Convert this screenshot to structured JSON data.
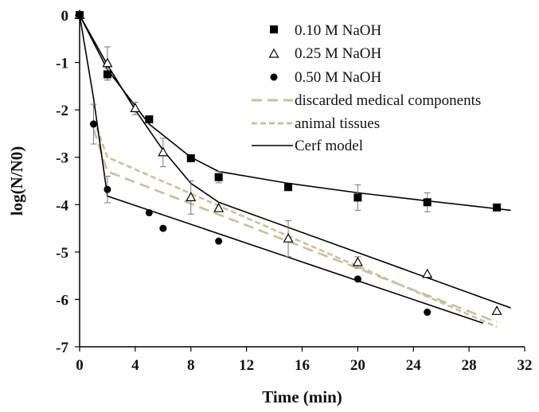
{
  "chart_data": {
    "type": "scatter",
    "title": "",
    "xlabel": "Time  (min)",
    "ylabel": "log(N/N0)",
    "xlim": [
      0,
      32
    ],
    "ylim": [
      -7,
      0
    ],
    "xticks": [
      "0",
      "4",
      "8",
      "12",
      "16",
      "20",
      "24",
      "28",
      "32"
    ],
    "yticks": [
      "0",
      "-1",
      "-2",
      "-3",
      "-4",
      "-5",
      "-6",
      "-7"
    ],
    "grid": false,
    "legend_position": "top-right",
    "colors": {
      "data": "#000000",
      "dashed": "#c8c09a"
    },
    "series": [
      {
        "name": "0.10 M NaOH",
        "marker": "square",
        "points": [
          {
            "x": 0,
            "y": 0,
            "err": 0
          },
          {
            "x": 2,
            "y": -1.25,
            "err": 0.12
          },
          {
            "x": 5,
            "y": -2.2,
            "err": 0
          },
          {
            "x": 8,
            "y": -3.02,
            "err": 0
          },
          {
            "x": 10,
            "y": -3.42,
            "err": 0.12
          },
          {
            "x": 15,
            "y": -3.63,
            "err": 0
          },
          {
            "x": 20,
            "y": -3.85,
            "err": 0.27
          },
          {
            "x": 25,
            "y": -3.95,
            "err": 0.2
          },
          {
            "x": 30,
            "y": -4.06,
            "err": 0
          }
        ]
      },
      {
        "name": "0.25 M NaOH",
        "marker": "triangle-open",
        "points": [
          {
            "x": 0,
            "y": 0,
            "err": 0
          },
          {
            "x": 2,
            "y": -1.02,
            "err": 0.35
          },
          {
            "x": 4,
            "y": -1.97,
            "err": 0.13
          },
          {
            "x": 6,
            "y": -2.9,
            "err": 0.3
          },
          {
            "x": 8,
            "y": -3.85,
            "err": 0.35
          },
          {
            "x": 10,
            "y": -4.08,
            "err": 0
          },
          {
            "x": 15,
            "y": -4.72,
            "err": 0.38
          },
          {
            "x": 20,
            "y": -5.22,
            "err": 0.12
          },
          {
            "x": 25,
            "y": -5.47,
            "err": 0
          },
          {
            "x": 30,
            "y": -6.25,
            "err": 0
          }
        ]
      },
      {
        "name": "0.50 M NaOH",
        "marker": "circle",
        "points": [
          {
            "x": 0,
            "y": 0,
            "err": 0
          },
          {
            "x": 1,
            "y": -2.3,
            "err": 0.42
          },
          {
            "x": 2,
            "y": -3.68,
            "err": 0.28
          },
          {
            "x": 5,
            "y": -4.17,
            "err": 0
          },
          {
            "x": 6,
            "y": -4.5,
            "err": 0
          },
          {
            "x": 10,
            "y": -4.77,
            "err": 0
          },
          {
            "x": 20,
            "y": -5.57,
            "err": 0
          },
          {
            "x": 25,
            "y": -6.27,
            "err": 0
          }
        ]
      }
    ],
    "lines": [
      {
        "name": "discarded medical components",
        "style": "dashed",
        "dash": "long",
        "points": [
          [
            1,
            -2.4
          ],
          [
            2,
            -3.3
          ],
          [
            30,
            -6.48
          ]
        ]
      },
      {
        "name": "animal tissues",
        "style": "dashed",
        "dash": "short",
        "points": [
          [
            1,
            -2.2
          ],
          [
            2,
            -3.0
          ],
          [
            30,
            -6.58
          ]
        ]
      },
      {
        "name": "Cerf model",
        "style": "solid",
        "curves": [
          [
            [
              0,
              0
            ],
            [
              1,
              -1.75
            ],
            [
              2,
              -3.82
            ],
            [
              29,
              -6.5
            ]
          ],
          [
            [
              0,
              0
            ],
            [
              2,
              -1.05
            ],
            [
              4,
              -2.0
            ],
            [
              6,
              -2.85
            ],
            [
              8,
              -3.55
            ],
            [
              10,
              -3.95
            ],
            [
              31,
              -6.18
            ]
          ],
          [
            [
              0,
              0
            ],
            [
              2,
              -1.15
            ],
            [
              5,
              -2.3
            ],
            [
              8,
              -3.0
            ],
            [
              10,
              -3.3
            ],
            [
              15,
              -3.55
            ],
            [
              20,
              -3.75
            ],
            [
              25,
              -3.92
            ],
            [
              31,
              -4.12
            ]
          ]
        ]
      }
    ]
  }
}
